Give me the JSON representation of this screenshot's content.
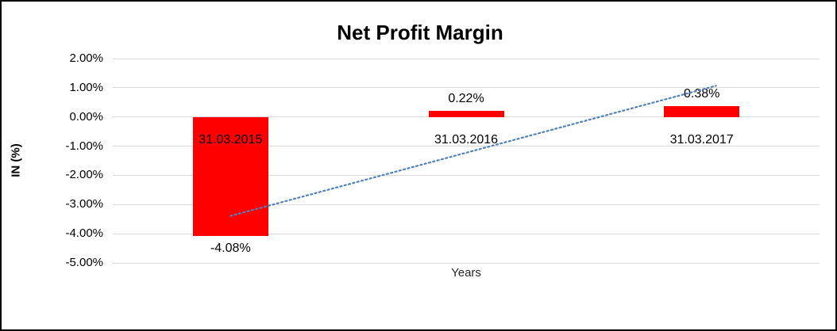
{
  "window": {
    "background_color": "#FFFFFF",
    "frame_border_color": "#000000"
  },
  "chart_data": {
    "type": "bar",
    "title": "Net Profit Margin",
    "xlabel": "Years",
    "ylabel": "IN (%)",
    "categories": [
      "31.03.2015",
      "31.03.2016",
      "31.03.2017"
    ],
    "values": [
      -4.08,
      0.22,
      0.38
    ],
    "value_labels": [
      "-4.08%",
      "0.22%",
      "0.38%"
    ],
    "ylim": [
      -5,
      2
    ],
    "ytick_values": [
      2,
      1,
      0,
      -1,
      -2,
      -3,
      -4,
      -5
    ],
    "ytick_labels": [
      "2.00%",
      "1.00%",
      "0.00%",
      "-1.00%",
      "-2.00%",
      "-3.00%",
      "-4.00%",
      "-5.00%"
    ],
    "grid": true,
    "gridline_color": "#D9D9D9",
    "bar_color": "#FF0000",
    "legend": false,
    "trendline": {
      "type": "linear",
      "style": "dotted",
      "color": "#4F81BD",
      "start_value": -3.39,
      "end_value": 1.07
    }
  }
}
